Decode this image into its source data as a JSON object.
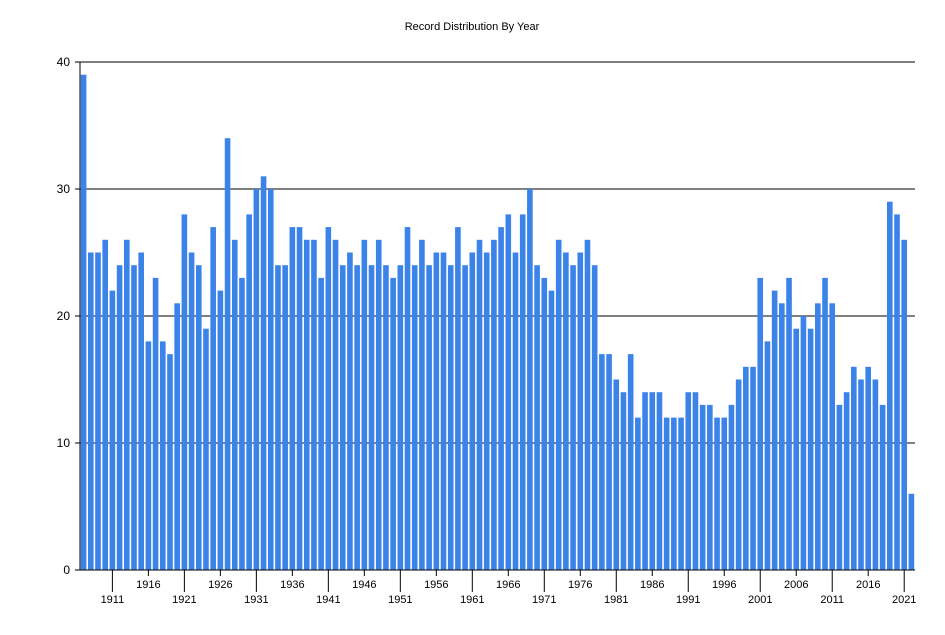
{
  "chart_data": {
    "type": "bar",
    "title": "Record Distribution By Year",
    "xlabel": "",
    "ylabel": "",
    "x_start": 1907,
    "x_end": 2022,
    "ylim": [
      0,
      40
    ],
    "y_ticks": [
      0,
      10,
      20,
      30,
      40
    ],
    "grid": "horizontal",
    "bar_color": "#3b83e8",
    "values": [
      39,
      25,
      25,
      26,
      22,
      24,
      26,
      24,
      25,
      18,
      23,
      18,
      17,
      21,
      28,
      25,
      24,
      19,
      27,
      22,
      34,
      26,
      23,
      28,
      30,
      31,
      30,
      24,
      24,
      27,
      27,
      26,
      26,
      23,
      27,
      26,
      24,
      25,
      24,
      26,
      24,
      26,
      24,
      23,
      24,
      27,
      24,
      26,
      24,
      25,
      25,
      24,
      27,
      24,
      25,
      26,
      25,
      26,
      27,
      28,
      25,
      28,
      30,
      24,
      23,
      22,
      26,
      25,
      24,
      25,
      26,
      24,
      17,
      17,
      15,
      14,
      17,
      12,
      14,
      14,
      14,
      12,
      12,
      12,
      14,
      14,
      13,
      13,
      12,
      12,
      13,
      15,
      16,
      16,
      23,
      18,
      22,
      21,
      23,
      19,
      20,
      19,
      21,
      23,
      21,
      13,
      14,
      16,
      15,
      16,
      15,
      13,
      29,
      28,
      26,
      6
    ],
    "x_tick_labels": [
      "1911",
      "1916",
      "1921",
      "1926",
      "1931",
      "1936",
      "1941",
      "1946",
      "1951",
      "1956",
      "1961",
      "1966",
      "1971",
      "1976",
      "1981",
      "1986",
      "1991",
      "1996",
      "2001",
      "2006",
      "2011",
      "2016",
      "2021"
    ]
  }
}
